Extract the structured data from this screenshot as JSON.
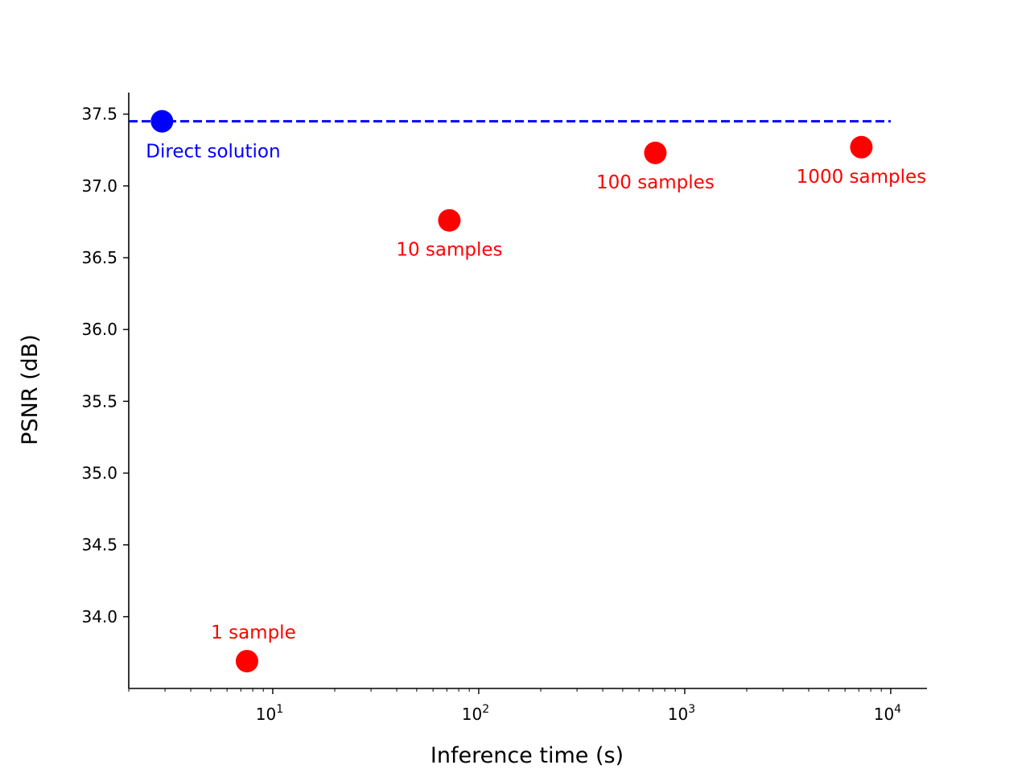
{
  "chart_data": {
    "type": "scatter",
    "title": "",
    "xlabel": "Inference time (s)",
    "ylabel": "PSNR (dB)",
    "x_scale": "log",
    "xlim": [
      2,
      15000
    ],
    "ylim": [
      33.5,
      37.65
    ],
    "x_ticks": [
      {
        "value": 10,
        "base": "10",
        "exp": "1"
      },
      {
        "value": 100,
        "base": "10",
        "exp": "2"
      },
      {
        "value": 1000,
        "base": "10",
        "exp": "3"
      },
      {
        "value": 10000,
        "base": "10",
        "exp": "4"
      }
    ],
    "y_ticks": [
      {
        "value": 34.0,
        "label": "34.0"
      },
      {
        "value": 34.5,
        "label": "34.5"
      },
      {
        "value": 35.0,
        "label": "35.0"
      },
      {
        "value": 35.5,
        "label": "35.5"
      },
      {
        "value": 36.0,
        "label": "36.0"
      },
      {
        "value": 36.5,
        "label": "36.5"
      },
      {
        "value": 37.0,
        "label": "37.0"
      },
      {
        "value": 37.5,
        "label": "37.5"
      }
    ],
    "reference_line": {
      "y": 37.45,
      "x_start": 2,
      "x_end": 10000,
      "color": "#0000ff",
      "style": "dashed"
    },
    "points": [
      {
        "x": 2.9,
        "y": 37.45,
        "label": "Direct solution",
        "color": "#0000ff",
        "label_pos": "below-right"
      },
      {
        "x": 7.5,
        "y": 33.69,
        "label": "1 sample",
        "color": "#ff0000",
        "label_pos": "above"
      },
      {
        "x": 72,
        "y": 36.76,
        "label": "10 samples",
        "color": "#ff0000",
        "label_pos": "below"
      },
      {
        "x": 720,
        "y": 37.23,
        "label": "100 samples",
        "color": "#ff0000",
        "label_pos": "below"
      },
      {
        "x": 7200,
        "y": 37.27,
        "label": "1000 samples",
        "color": "#ff0000",
        "label_pos": "below"
      }
    ],
    "grid": false
  }
}
